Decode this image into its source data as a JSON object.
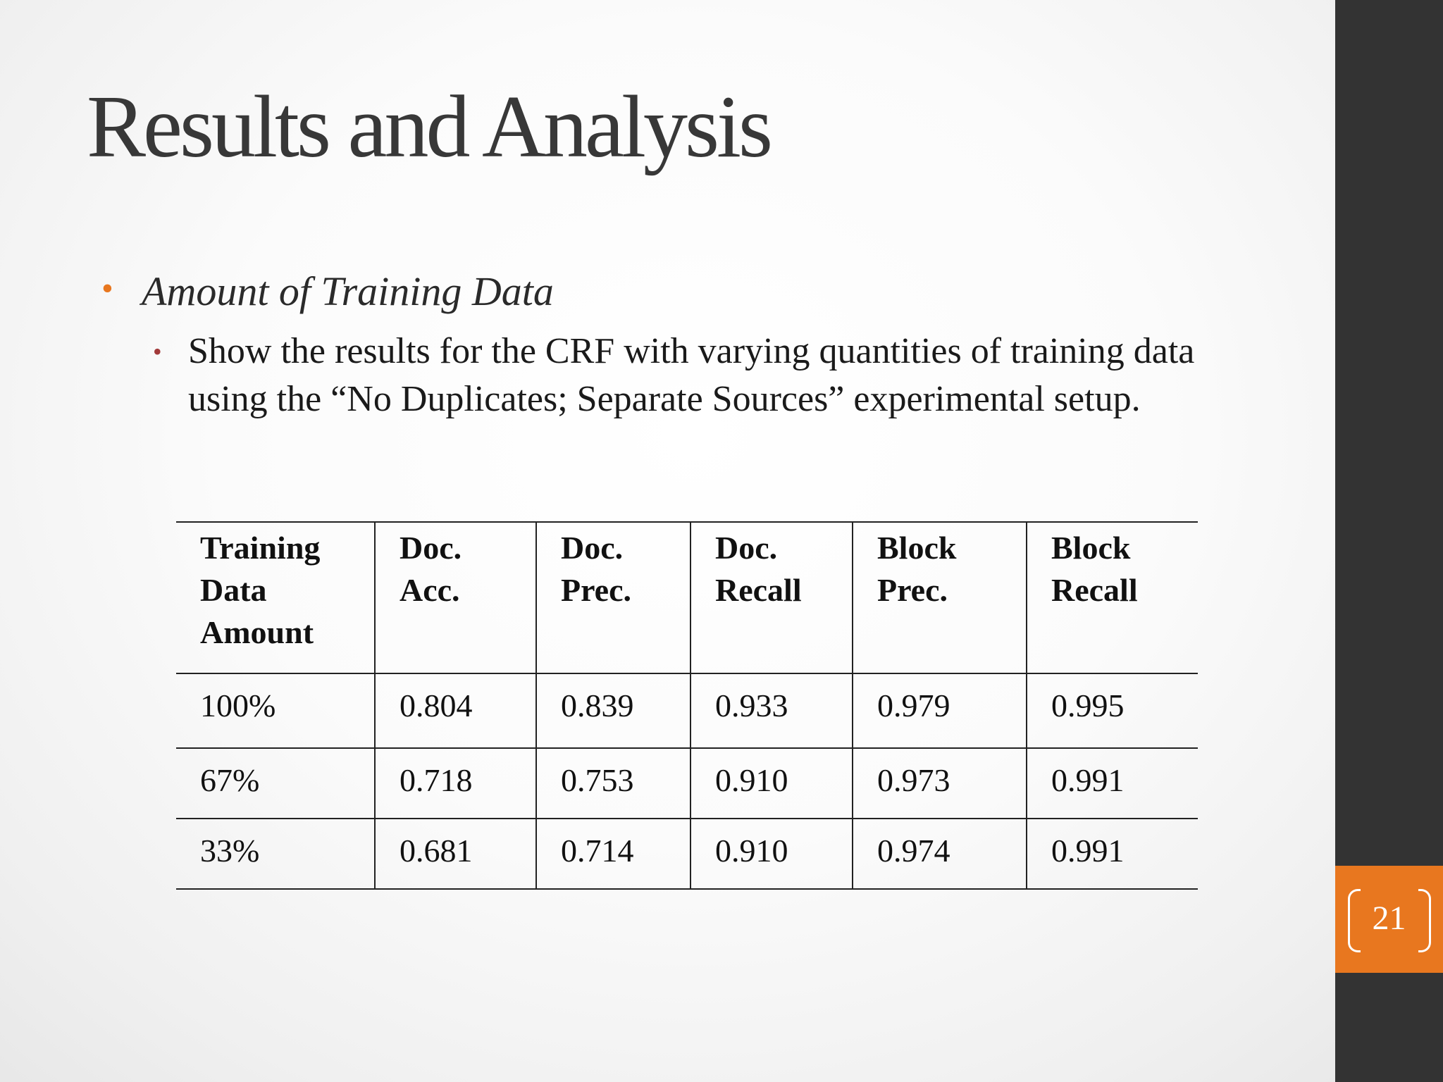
{
  "slide": {
    "title": "Results and Analysis",
    "bullet_1": "Amount of Training Data",
    "bullet_2": "Show the results for the CRF with varying quantities of training data using the “No Duplicates; Separate Sources” experimental setup.",
    "page_number": "21"
  },
  "table": {
    "headers": [
      [
        "Training",
        "Data",
        "Amount"
      ],
      [
        "Doc.",
        "Acc."
      ],
      [
        "Doc.",
        "Prec."
      ],
      [
        "Doc.",
        "Recall"
      ],
      [
        "Block",
        "Prec."
      ],
      [
        "Block",
        "Recall"
      ]
    ],
    "rows": [
      [
        "100%",
        "0.804",
        "0.839",
        "0.933",
        "0.979",
        "0.995"
      ],
      [
        "67%",
        "0.718",
        "0.753",
        "0.910",
        "0.973",
        "0.991"
      ],
      [
        "33%",
        "0.681",
        "0.714",
        "0.910",
        "0.974",
        "0.991"
      ]
    ]
  },
  "colors": {
    "accent": "#e8771f",
    "sidebar": "#333333",
    "bullet_level_2": "#a23a3a"
  }
}
